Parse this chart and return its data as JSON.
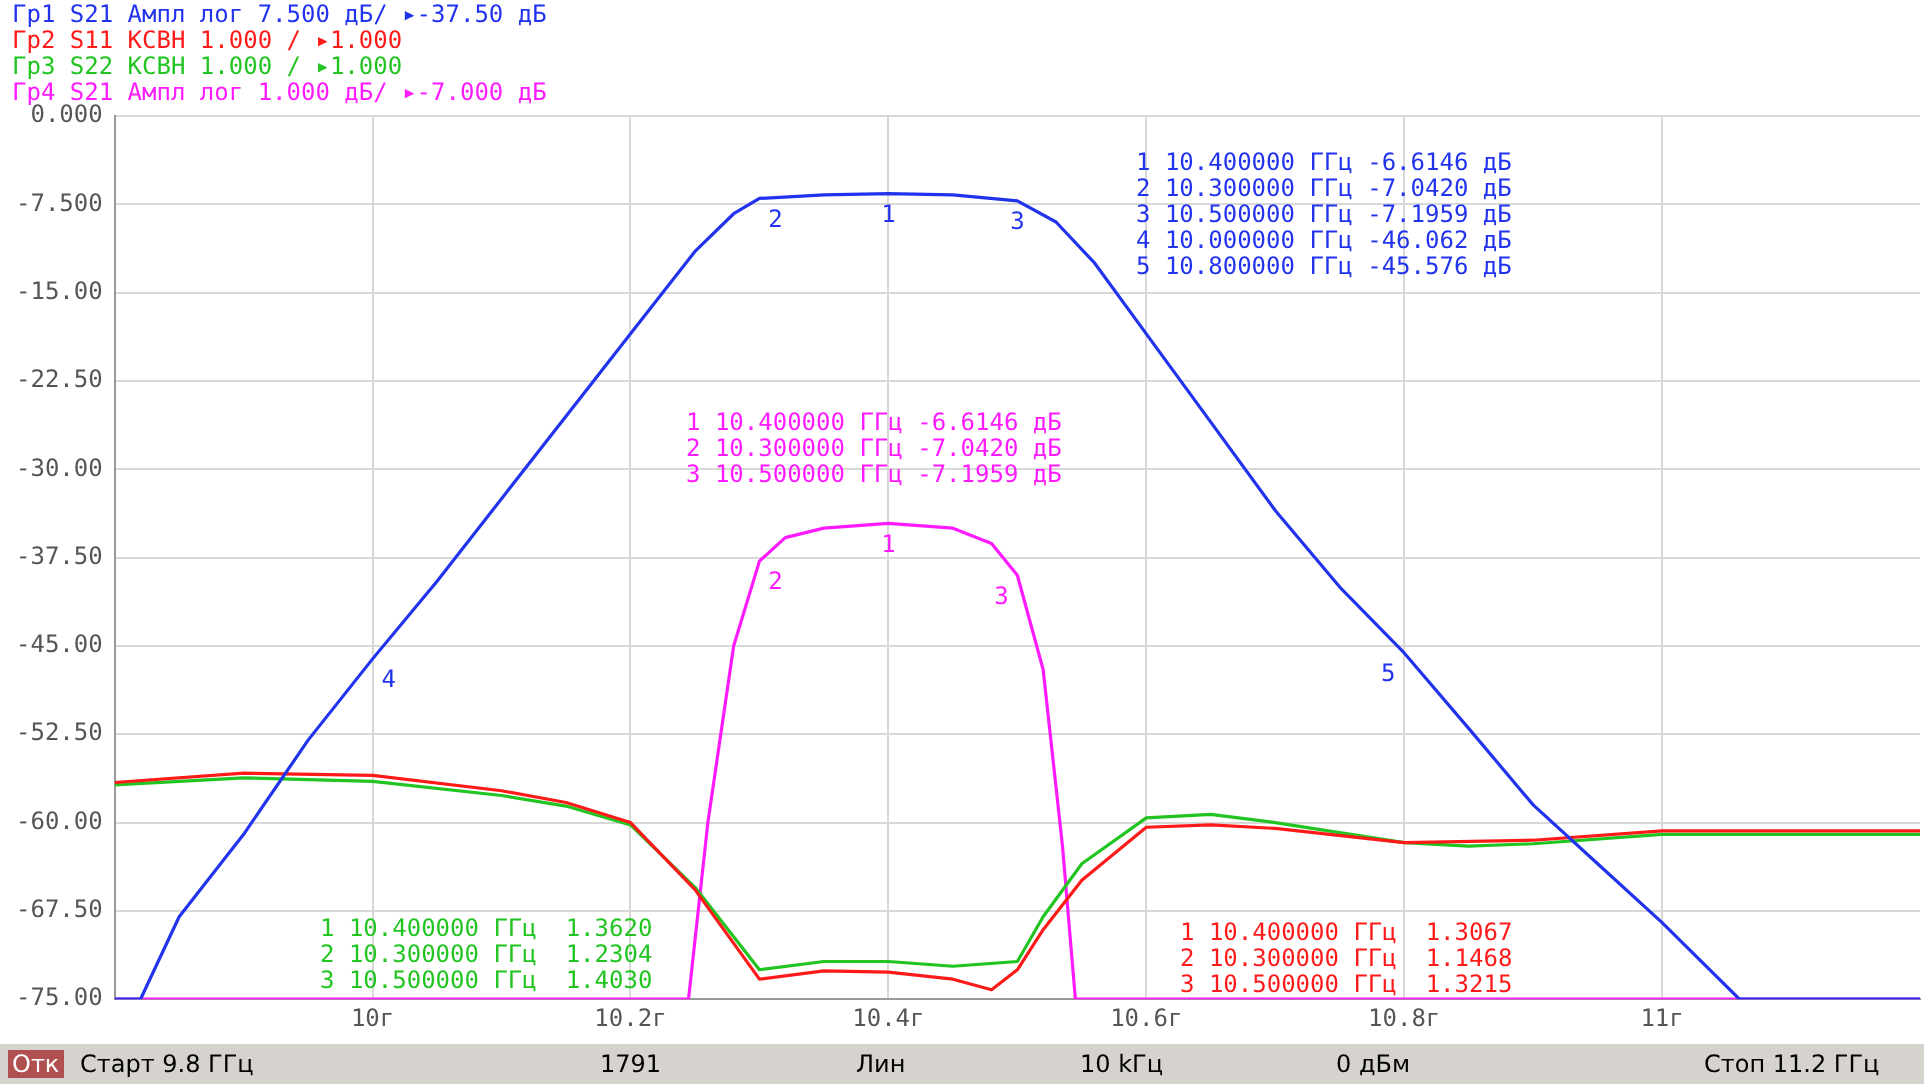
{
  "chart_data": {
    "type": "line",
    "legend": "top left",
    "grid": true,
    "marker": "none",
    "line_style": "solid",
    "xlim": [
      9.8,
      11.2
    ],
    "xticks": [
      {
        "value": 10,
        "label": "10г"
      },
      {
        "value": 10.2,
        "label": "10.2г"
      },
      {
        "value": 10.4,
        "label": "10.4г"
      },
      {
        "value": 10.6,
        "label": "10.6г"
      },
      {
        "value": 10.8,
        "label": "10.8г"
      },
      {
        "value": 11,
        "label": "11г"
      }
    ],
    "ylim": [
      -75,
      0
    ],
    "yticks": [
      {
        "value": 0,
        "label": "0.000"
      },
      {
        "value": -7.5,
        "label": "-7.500"
      },
      {
        "value": -15,
        "label": "-15.00"
      },
      {
        "value": -22.5,
        "label": "-22.50"
      },
      {
        "value": -30,
        "label": "-30.00"
      },
      {
        "value": -37.5,
        "label": "-37.50"
      },
      {
        "value": -45,
        "label": "-45.00"
      },
      {
        "value": -52.5,
        "label": "-52.50"
      },
      {
        "value": -60,
        "label": "-60.00"
      },
      {
        "value": -67.5,
        "label": "-67.50"
      },
      {
        "value": -75,
        "label": "-75.00"
      }
    ],
    "series": [
      {
        "name": "Гр1 S21 Ампл лог 7.500 дБ/ ▸-37.50 дБ",
        "color": "#2233ee",
        "x": [
          9.8,
          9.82,
          9.85,
          9.9,
          9.95,
          10.0,
          10.05,
          10.1,
          10.15,
          10.2,
          10.25,
          10.28,
          10.3,
          10.35,
          10.4,
          10.45,
          10.5,
          10.53,
          10.56,
          10.6,
          10.65,
          10.7,
          10.75,
          10.8,
          10.85,
          10.9,
          10.95,
          11.0,
          11.06,
          11.2
        ],
        "values": [
          -75,
          -75,
          -68,
          -61,
          -53,
          -46.1,
          -39.5,
          -32.5,
          -25.5,
          -18.5,
          -11.5,
          -8.3,
          -7.0,
          -6.7,
          -6.6,
          -6.7,
          -7.2,
          -9,
          -12.5,
          -18.5,
          -26,
          -33.5,
          -40,
          -45.6,
          -52,
          -58.5,
          -63.5,
          -68.5,
          -75,
          -75
        ]
      },
      {
        "name": "Гр2 S11 КСВН 1.000 / ▸1.000",
        "color": "#ff1a1a",
        "x": [
          9.8,
          9.9,
          10.0,
          10.1,
          10.15,
          10.2,
          10.25,
          10.3,
          10.35,
          10.4,
          10.45,
          10.48,
          10.5,
          10.52,
          10.55,
          10.6,
          10.65,
          10.7,
          10.8,
          10.9,
          11.0,
          11.2
        ],
        "values": [
          -56.6,
          -55.8,
          -56,
          -57.3,
          -58.3,
          -60,
          -65.7,
          -73.3,
          -72.6,
          -72.7,
          -73.3,
          -74.2,
          -72.5,
          -69.1,
          -64.9,
          -60.4,
          -60.2,
          -60.5,
          -61.7,
          -61.5,
          -60.7,
          -60.7
        ]
      },
      {
        "name": "Гр3 S22 КСВН 1.000 / ▸1.000",
        "color": "#22c422",
        "x": [
          9.8,
          9.9,
          10.0,
          10.1,
          10.15,
          10.2,
          10.25,
          10.3,
          10.35,
          10.4,
          10.45,
          10.5,
          10.52,
          10.55,
          10.6,
          10.65,
          10.7,
          10.8,
          10.85,
          10.9,
          11.0,
          11.2
        ],
        "values": [
          -56.8,
          -56.2,
          -56.5,
          -57.7,
          -58.6,
          -60.2,
          -65.5,
          -72.5,
          -71.8,
          -71.8,
          -72.2,
          -71.8,
          -68,
          -63.5,
          -59.6,
          -59.3,
          -60,
          -61.7,
          -62,
          -61.8,
          -61,
          -61
        ]
      },
      {
        "name": "Гр4 S21 Ампл лог 1.000 дБ/ ▸-7.000 дБ",
        "color": "#ff1aff",
        "x": [
          9.8,
          10.245,
          10.26,
          10.28,
          10.3,
          10.32,
          10.35,
          10.4,
          10.45,
          10.48,
          10.5,
          10.52,
          10.535,
          10.545,
          11.2
        ],
        "values": [
          -75,
          -75,
          -60,
          -45,
          -37.8,
          -35.8,
          -35,
          -34.6,
          -35,
          -36.3,
          -39,
          -47,
          -62,
          -75,
          -75
        ]
      }
    ],
    "annotations": [
      "1 10.400000 ГГц -6.6146 дБ",
      "2 10.300000 ГГц -7.0420 дБ",
      "3 10.500000 ГГц -7.1959 дБ",
      "4 10.000000 ГГц -46.062 дБ",
      "5 10.800000 ГГц -45.576 дБ",
      "1 10.400000 ГГц -6.6146 дБ",
      "2 10.300000 ГГц -7.0420 дБ",
      "3 10.500000 ГГц -7.1959 дБ",
      "1 10.400000 ГГц  1.3620",
      "2 10.300000 ГГц  1.2304",
      "3 10.500000 ГГц  1.4030",
      "1 10.400000 ГГц  1.3067",
      "2 10.300000 ГГц  1.1468",
      "3 10.500000 ГГц  1.3215",
      "Отк",
      "Старт 9.8 ГГц",
      "1791",
      "Лин",
      "10 kГц",
      "0 дБм",
      "Стоп 11.2 ГГц",
      {
        "text": "1",
        "x": 10.4,
        "y": -6.6
      },
      {
        "text": "2",
        "x": 10.3,
        "y": -7.0
      },
      {
        "text": "3",
        "x": 10.5,
        "y": -7.2
      },
      {
        "text": "4",
        "x": 10.0,
        "y": -46.1
      },
      {
        "text": "5",
        "x": 10.8,
        "y": -45.6
      },
      {
        "text": "1",
        "x": 10.4,
        "y": -34.6
      },
      {
        "text": "2",
        "x": 10.3,
        "y": -37.8
      },
      {
        "text": "3",
        "x": 10.5,
        "y": -39
      }
    ]
  }
}
